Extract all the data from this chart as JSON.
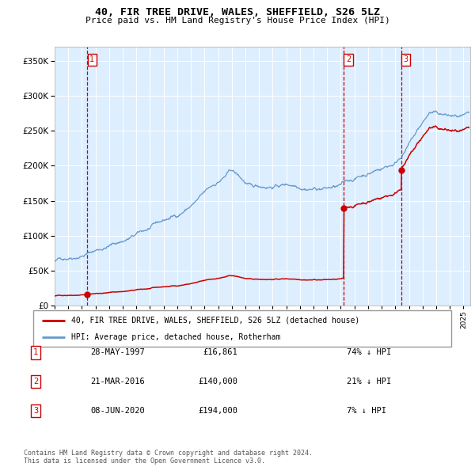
{
  "title": "40, FIR TREE DRIVE, WALES, SHEFFIELD, S26 5LZ",
  "subtitle": "Price paid vs. HM Land Registry's House Price Index (HPI)",
  "legend_line1": "40, FIR TREE DRIVE, WALES, SHEFFIELD, S26 5LZ (detached house)",
  "legend_line2": "HPI: Average price, detached house, Rotherham",
  "transactions": [
    {
      "label": "1",
      "date_str": "28-MAY-1997",
      "date_num": 1997.41,
      "price": 16861,
      "hpi_pct": "74% ↓ HPI"
    },
    {
      "label": "2",
      "date_str": "21-MAR-2016",
      "date_num": 2016.22,
      "price": 140000,
      "hpi_pct": "21% ↓ HPI"
    },
    {
      "label": "3",
      "date_str": "08-JUN-2020",
      "date_num": 2020.44,
      "price": 194000,
      "hpi_pct": "7% ↓ HPI"
    }
  ],
  "footer_line1": "Contains HM Land Registry data © Crown copyright and database right 2024.",
  "footer_line2": "This data is licensed under the Open Government Licence v3.0.",
  "red_color": "#cc0000",
  "blue_color": "#6699cc",
  "plot_bg": "#ddeeff",
  "ylim": [
    0,
    370000
  ],
  "xlim_start": 1995.0,
  "xlim_end": 2025.5
}
